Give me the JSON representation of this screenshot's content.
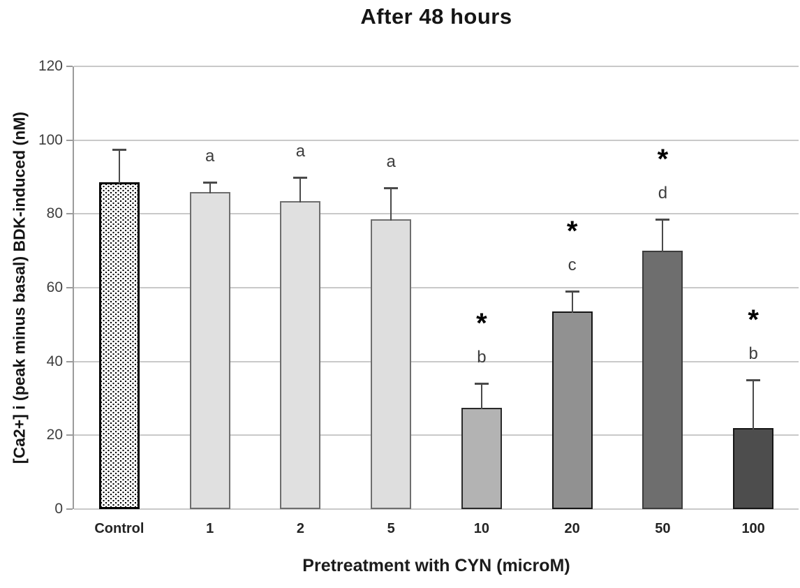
{
  "chart_data": {
    "type": "bar",
    "title": "After 48 hours",
    "xlabel": "Pretreatment with CYN (microM)",
    "ylabel": "[Ca2+] i (peak minus basal) BDK-induced (nM)",
    "ylim": [
      0,
      120
    ],
    "yticks": [
      0,
      20,
      40,
      60,
      80,
      100,
      120
    ],
    "grid": true,
    "legend_position": "none",
    "categories": [
      "Control",
      "1",
      "2",
      "5",
      "10",
      "20",
      "50",
      "100"
    ],
    "values": [
      88.5,
      86,
      83.5,
      78.5,
      27.5,
      53.5,
      70,
      22
    ],
    "error_plus": [
      9,
      2.5,
      6.5,
      8.5,
      6.5,
      5.5,
      8.5,
      13
    ],
    "annotation_letters": [
      "",
      "a",
      "a",
      "a",
      "b",
      "c",
      "d",
      "b"
    ],
    "annotation_stars": [
      false,
      false,
      false,
      false,
      true,
      true,
      true,
      true
    ],
    "star_glyph": "*",
    "bar_styles": [
      {
        "fill": "#ffffff",
        "border": "#000000",
        "border_width": 3,
        "pattern": "dots"
      },
      {
        "fill": "#e0e0e0",
        "border": "#6e6e6e",
        "border_width": 2,
        "pattern": "solid"
      },
      {
        "fill": "#e0e0e0",
        "border": "#6e6e6e",
        "border_width": 2,
        "pattern": "solid"
      },
      {
        "fill": "#dedede",
        "border": "#6e6e6e",
        "border_width": 2,
        "pattern": "solid"
      },
      {
        "fill": "#b3b3b3",
        "border": "#2a2a2a",
        "border_width": 2,
        "pattern": "solid"
      },
      {
        "fill": "#919191",
        "border": "#161616",
        "border_width": 2,
        "pattern": "solid"
      },
      {
        "fill": "#6e6e6e",
        "border": "#3c3c3c",
        "border_width": 2,
        "pattern": "solid"
      },
      {
        "fill": "#4d4d4d",
        "border": "#161616",
        "border_width": 2,
        "pattern": "solid"
      }
    ],
    "style_colors": {
      "gridline": "#c9c9c9",
      "axis_line": "#9b9b9b",
      "error_bar": "#4a4a4a",
      "tick_label": "#3e3e3e"
    }
  }
}
